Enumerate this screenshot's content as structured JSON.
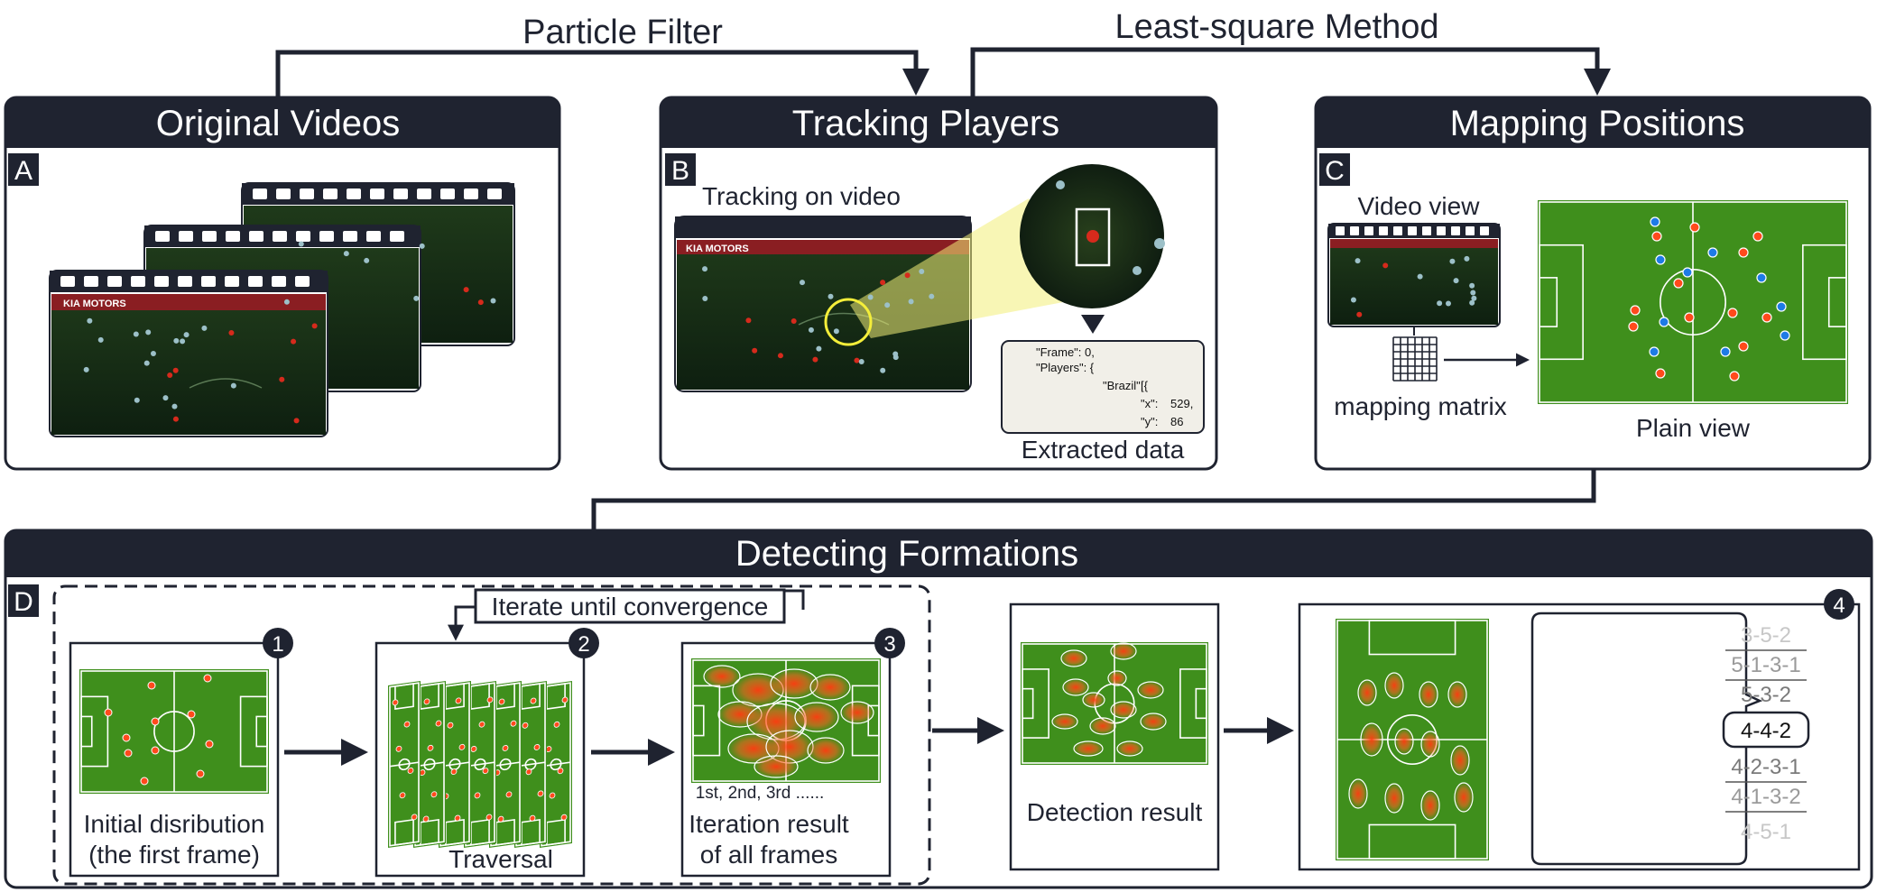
{
  "arrows": {
    "particle_filter": "Particle Filter",
    "least_square": "Least-square Method"
  },
  "panels": {
    "original": {
      "title": "Original Videos",
      "letter": "A"
    },
    "tracking": {
      "title": "Tracking Players",
      "letter": "B",
      "video_caption": "Tracking on video",
      "data_caption": "Extracted data",
      "brand": "KIA MOTORS",
      "json_lines": [
        "\"Frame\":   0,",
        "\"Players\": {",
        "\"Brazil\":",
        "[{",
        "\"x\":",
        "529,",
        "\"y\":",
        "86"
      ]
    },
    "mapping": {
      "title": "Mapping Positions",
      "letter": "C",
      "video_view": "Video view",
      "matrix": "mapping matrix",
      "plain_view": "Plain view"
    },
    "detecting": {
      "title": "Detecting Formations",
      "letter": "D",
      "iterate": "Iterate until convergence",
      "step1": "Initial disribution",
      "step1b": "(the first frame)",
      "step2": "Traversal",
      "step3_frames": "1st, 2nd, 3rd ......",
      "step3": "Iteration result",
      "step3b": "of all frames",
      "detection": "Detection result",
      "badges": [
        "1",
        "2",
        "3",
        "4"
      ],
      "formations": [
        "3-5-2",
        "5-1-3-1",
        "5-3-2",
        "4-4-2",
        "4-2-3-1",
        "4-1-3-2",
        "4-5-1"
      ],
      "selected_formation": "4-4-2"
    }
  },
  "colors": {
    "dark": "#1f2330",
    "pitch": "#3f8f1c",
    "red_player": "#ff4a1c",
    "blue_player": "#1e7be6",
    "highlight": "#f2ef78"
  }
}
